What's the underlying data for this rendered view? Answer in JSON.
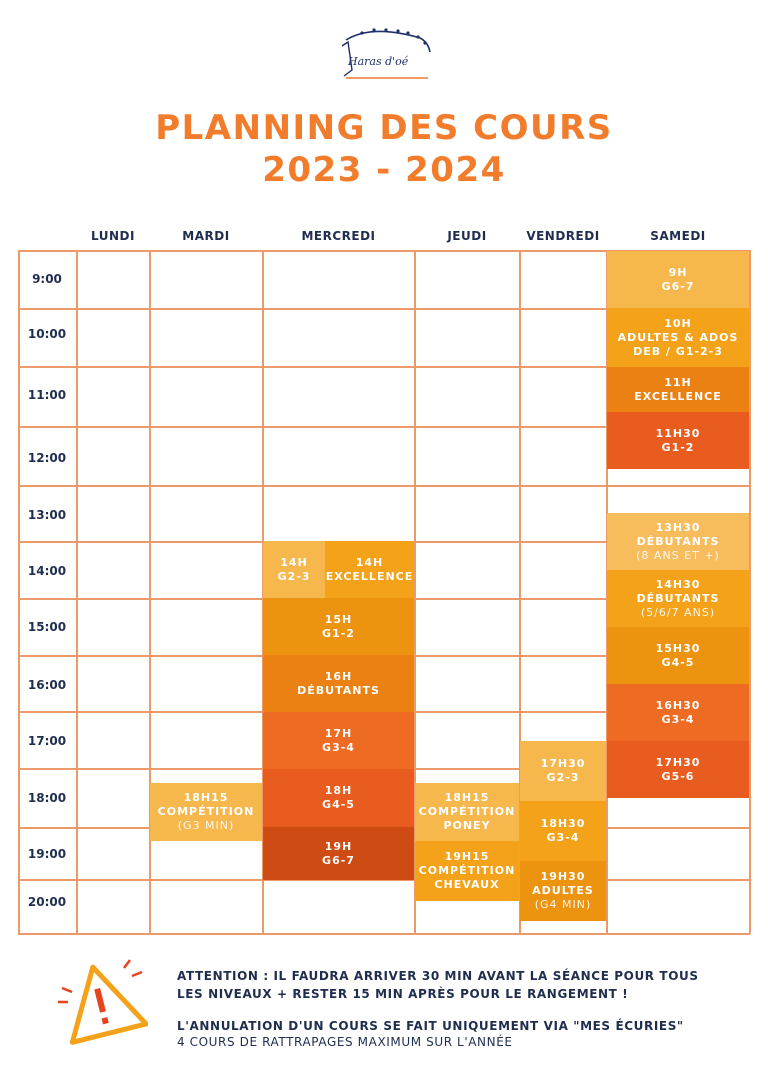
{
  "header": {
    "logo_text": "Haras d'oé",
    "title_line1": "PLANNING DES COURS",
    "title_line2": "2023 - 2024"
  },
  "days": [
    "LUNDI",
    "MARDI",
    "MERCREDI",
    "JEUDI",
    "VENDREDI",
    "SAMEDI"
  ],
  "times": [
    "9:00",
    "10:00",
    "11:00",
    "12:00",
    "13:00",
    "14:00",
    "15:00",
    "16:00",
    "17:00",
    "18:00",
    "19:00",
    "20:00"
  ],
  "courses": {
    "mardi_1815": {
      "line1": "18H15",
      "line2": "COMPÉTITION",
      "note": "(G3 MIN)",
      "color": "#f6b84c"
    },
    "mercredi_14h_a": {
      "line1": "14H",
      "line2": "G2-3",
      "color": "#f6b84c"
    },
    "mercredi_14h_b": {
      "line1": "14H",
      "line2": "EXCELLENCE",
      "color": "#f3a21a"
    },
    "mercredi_15h": {
      "line1": "15H",
      "line2": "G1-2",
      "color": "#ec9310"
    },
    "mercredi_16h": {
      "line1": "16H",
      "line2": "DÉBUTANTS",
      "color": "#eb8013"
    },
    "mercredi_17h": {
      "line1": "17H",
      "line2": "G3-4",
      "color": "#ed6b23"
    },
    "mercredi_18h": {
      "line1": "18H",
      "line2": "G4-5",
      "color": "#e85d1f"
    },
    "mercredi_19h": {
      "line1": "19H",
      "line2": "G6-7",
      "color": "#cf4b14"
    },
    "jeudi_1815": {
      "line1": "18H15",
      "line2": "COMPÉTITION",
      "line3": "PONEY",
      "color": "#f6b84c"
    },
    "jeudi_1915": {
      "line1": "19H15",
      "line2": "COMPÉTITION",
      "line3": "CHEVAUX",
      "color": "#f3a21a"
    },
    "vendredi_1730": {
      "line1": "17H30",
      "line2": "G2-3",
      "color": "#f6b84c"
    },
    "vendredi_1830": {
      "line1": "18H30",
      "line2": "G3-4",
      "color": "#f3a21a"
    },
    "vendredi_1930": {
      "line1": "19H30",
      "line2": "ADULTES",
      "note": "(G4 MIN)",
      "color": "#ec9310"
    },
    "samedi_9h": {
      "line1": "9H",
      "line2": "G6-7",
      "color": "#f6b84c"
    },
    "samedi_10h": {
      "line1": "10H",
      "line2": "ADULTES & ADOS",
      "line3": "DEB / G1-2-3",
      "color": "#f3a21a"
    },
    "samedi_11h": {
      "line1": "11H",
      "line2": "EXCELLENCE",
      "color": "#eb8013"
    },
    "samedi_1130": {
      "line1": "11H30",
      "line2": "G1-2",
      "color": "#e85d1f"
    },
    "samedi_1330": {
      "line1": "13H30",
      "line2": "DÉBUTANTS",
      "note": "(8 ANS ET +)",
      "color": "#f7bc5c"
    },
    "samedi_1430": {
      "line1": "14H30",
      "line2": "DÉBUTANTS",
      "note": "(5/6/7 ANS)",
      "color": "#f3a21a"
    },
    "samedi_1530": {
      "line1": "15H30",
      "line2": "G4-5",
      "color": "#ec9310"
    },
    "samedi_1630": {
      "line1": "16H30",
      "line2": "G3-4",
      "color": "#ed6b23"
    },
    "samedi_1730": {
      "line1": "17H30",
      "line2": "G5-6",
      "color": "#e85d1f"
    }
  },
  "notice": {
    "line1": "ATTENTION : IL FAUDRA ARRIVER 30 MIN AVANT LA SÉANCE POUR TOUS",
    "line2": "LES NIVEAUX + RESTER 15 MIN APRÈS POUR LE RANGEMENT !",
    "line3": "L'ANNULATION D'UN COURS SE FAIT UNIQUEMENT VIA \"MES ÉCURIES\"",
    "line4": "4 COURS DE RATTRAPAGES MAXIMUM SUR L'ANNÉE"
  },
  "colors": {
    "title": "#f07c2c",
    "text_dark": "#1f2d4e",
    "grid": "#ec9a6a",
    "warning": "#f3a21a"
  }
}
